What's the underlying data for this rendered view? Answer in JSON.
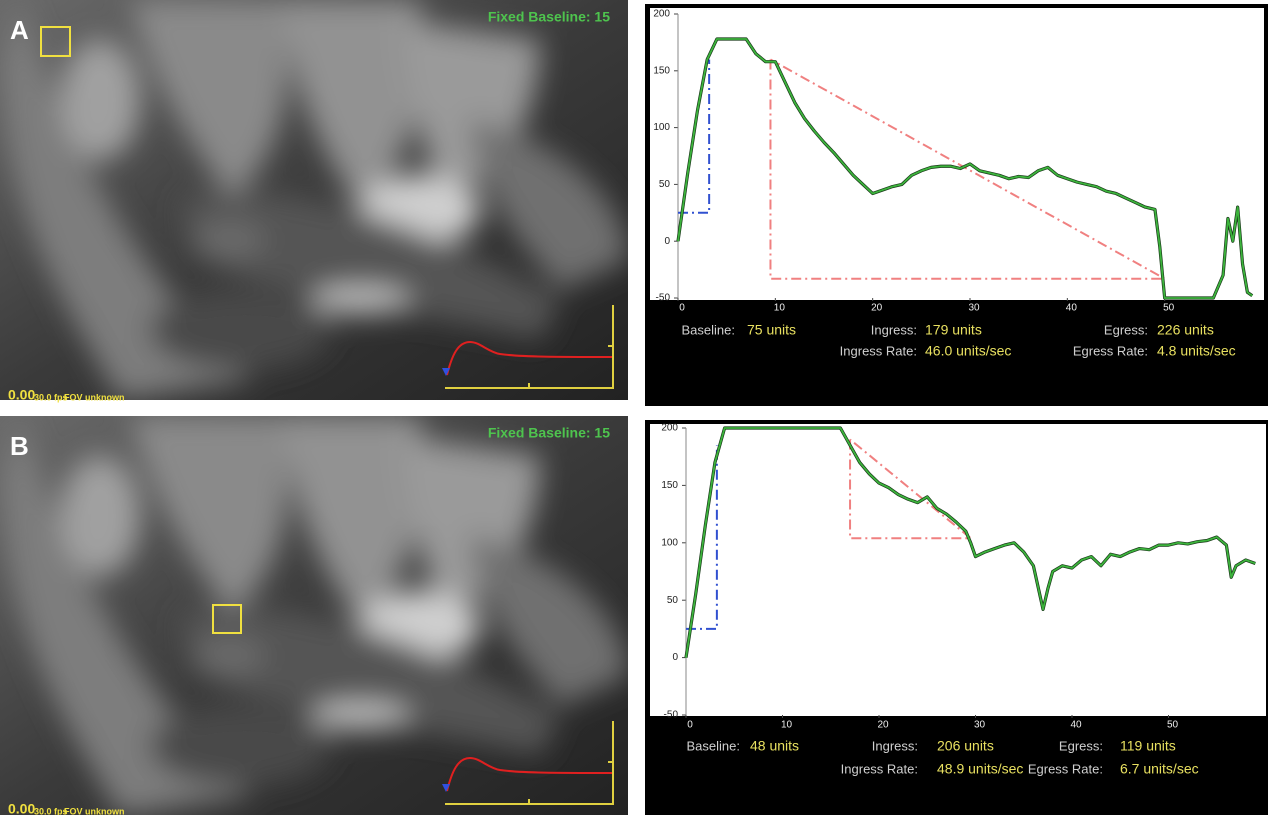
{
  "panels": [
    {
      "label": "A",
      "overlay": "Fixed Baseline: 15",
      "time": "0.00",
      "fps": "30.0 fps",
      "fov": "FOV unknown",
      "stats": [
        {
          "label": "Baseline:",
          "value": "75 units"
        },
        {
          "label": "Ingress:",
          "value": "179 units"
        },
        {
          "label": "Egress:",
          "value": "226 units"
        },
        {
          "label": "Ingress Rate:",
          "value": "46.0 units/sec"
        },
        {
          "label": "Egress Rate:",
          "value": "4.8 units/sec"
        }
      ]
    },
    {
      "label": "B",
      "overlay": "Fixed Baseline: 15",
      "time": "0.00",
      "fps": "30.0 fps",
      "fov": "FOV unknown",
      "stats": [
        {
          "label": "Baseline:",
          "value": "48 units"
        },
        {
          "label": "Ingress:",
          "value": "206 units"
        },
        {
          "label": "Egress:",
          "value": "119 units"
        },
        {
          "label": "Ingress Rate:",
          "value": "48.9 units/sec"
        },
        {
          "label": "Egress Rate:",
          "value": "6.7 units/sec"
        }
      ]
    }
  ],
  "chart_data": [
    {
      "type": "line",
      "xlim": [
        0,
        60
      ],
      "ylim": [
        -50,
        200
      ],
      "xticks": [
        0,
        10,
        20,
        30,
        40,
        50
      ],
      "yticks": [
        -50,
        0,
        50,
        100,
        150,
        200
      ],
      "x": [
        0,
        1,
        2,
        3,
        4,
        5,
        6,
        7,
        8,
        9,
        10,
        11,
        12,
        13,
        14,
        15,
        16,
        17,
        18,
        19,
        20,
        21,
        22,
        23,
        24,
        25,
        26,
        27,
        28,
        29,
        30,
        31,
        32,
        33,
        34,
        35,
        36,
        37,
        38,
        39,
        40,
        41,
        42,
        43,
        44,
        45,
        46,
        47,
        48,
        49,
        49.5,
        50,
        55,
        56,
        56.5,
        57,
        57.5,
        58,
        58.5,
        59
      ],
      "series": [
        {
          "color": "#3cb43c",
          "values": [
            0,
            60,
            115,
            160,
            178,
            178,
            178,
            178,
            165,
            158,
            158,
            140,
            122,
            108,
            97,
            87,
            78,
            68,
            58,
            50,
            42,
            45,
            48,
            50,
            58,
            62,
            65,
            66,
            66,
            64,
            68,
            62,
            60,
            58,
            55,
            57,
            56,
            62,
            65,
            58,
            55,
            52,
            50,
            48,
            44,
            42,
            38,
            34,
            30,
            28,
            -5,
            -50,
            -50,
            -30,
            20,
            0,
            30,
            -20,
            -45,
            -48
          ]
        }
      ],
      "guides": [
        {
          "color": "#3050d0",
          "x": [
            0,
            3.2,
            3.2
          ],
          "y": [
            25,
            25,
            160
          ]
        },
        {
          "color": "#f08080",
          "x": [
            9.5,
            9.5,
            50,
            9.5
          ],
          "y": [
            160,
            -33,
            -33,
            160
          ]
        }
      ]
    },
    {
      "type": "line",
      "xlim": [
        0,
        60
      ],
      "ylim": [
        -50,
        200
      ],
      "xticks": [
        0,
        10,
        20,
        30,
        40,
        50
      ],
      "yticks": [
        -50,
        0,
        50,
        100,
        150,
        200
      ],
      "x": [
        0,
        1,
        2,
        3,
        4,
        5,
        16,
        17,
        18,
        19,
        20,
        21,
        22,
        23,
        24,
        25,
        26,
        27,
        28,
        29,
        29.5,
        30,
        31,
        32,
        33,
        34,
        35,
        36,
        37,
        37.5,
        38,
        39,
        40,
        41,
        42,
        43,
        44,
        45,
        46,
        47,
        48,
        49,
        50,
        51,
        52,
        53,
        54,
        55,
        56,
        56.5,
        57,
        58,
        59
      ],
      "series": [
        {
          "color": "#3cb43c",
          "values": [
            0,
            55,
            115,
            170,
            200,
            200,
            200,
            185,
            170,
            160,
            152,
            148,
            142,
            138,
            135,
            140,
            130,
            125,
            118,
            110,
            100,
            88,
            92,
            95,
            98,
            100,
            92,
            80,
            42,
            60,
            75,
            80,
            78,
            85,
            88,
            80,
            90,
            88,
            92,
            95,
            94,
            98,
            98,
            100,
            99,
            101,
            102,
            105,
            98,
            70,
            80,
            85,
            82
          ]
        }
      ],
      "guides": [
        {
          "color": "#3050d0",
          "x": [
            0,
            3.2,
            3.2
          ],
          "y": [
            25,
            25,
            185
          ]
        },
        {
          "color": "#f08080",
          "x": [
            17,
            17,
            29.5,
            17
          ],
          "y": [
            190,
            104,
            104,
            190
          ]
        }
      ]
    }
  ]
}
